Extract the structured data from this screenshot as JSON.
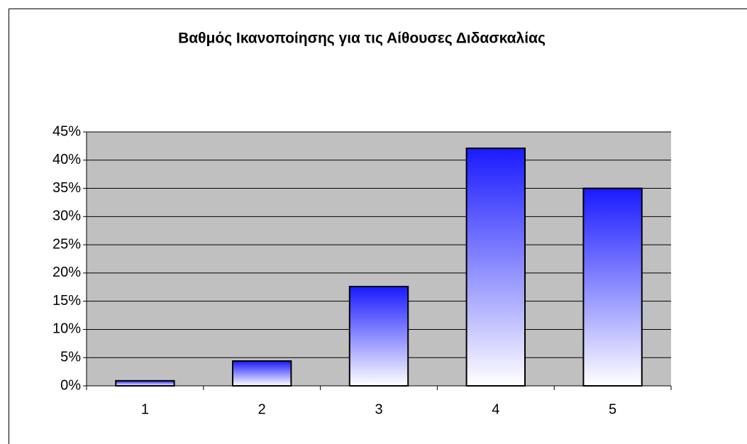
{
  "chart_data": {
    "type": "bar",
    "title": "Βαθμός Ικανοποίησης για τις Αίθουσες Διδασκαλίας",
    "categories": [
      "1",
      "2",
      "3",
      "4",
      "5"
    ],
    "values": [
      0.9,
      4.4,
      17.6,
      42.1,
      35.0
    ],
    "color": "#1a1aff",
    "ylim": [
      0,
      45
    ],
    "yticks": [
      {
        "value": 0,
        "label": "0%"
      },
      {
        "value": 5,
        "label": "5%"
      },
      {
        "value": 10,
        "label": "10%"
      },
      {
        "value": 15,
        "label": "15%"
      },
      {
        "value": 20,
        "label": "20%"
      },
      {
        "value": 25,
        "label": "25%"
      },
      {
        "value": 30,
        "label": "30%"
      },
      {
        "value": 35,
        "label": "35%"
      },
      {
        "value": 40,
        "label": "40%"
      },
      {
        "value": 45,
        "label": "45%"
      }
    ],
    "grid": true
  }
}
